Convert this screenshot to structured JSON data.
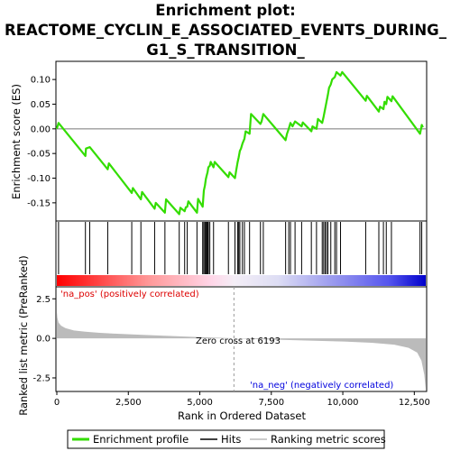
{
  "chart_data": {
    "type": "line",
    "title_lines": [
      "Enrichment plot:",
      "REACTOME_CYCLIN_E_ASSOCIATED_EVENTS_DURING_",
      "G1_S_TRANSITION_"
    ],
    "total_genes": 12900,
    "top_panel": {
      "ylabel": "Enrichment score (ES)",
      "ylim": [
        -0.185,
        0.135
      ],
      "yticks": [
        -0.15,
        -0.1,
        -0.05,
        0.0,
        0.05,
        0.1
      ],
      "ytick_labels": [
        "-0.15",
        "-0.10",
        "-0.05",
        "0.00",
        "0.05",
        "0.10"
      ],
      "series_name": "Enrichment profile",
      "color": "#33dd00",
      "points": [
        [
          0,
          0.0
        ],
        [
          60,
          0.012
        ],
        [
          1000,
          -0.055
        ],
        [
          1020,
          -0.04
        ],
        [
          1150,
          -0.037
        ],
        [
          1780,
          -0.082
        ],
        [
          1820,
          -0.07
        ],
        [
          2620,
          -0.13
        ],
        [
          2660,
          -0.12
        ],
        [
          2940,
          -0.143
        ],
        [
          2980,
          -0.128
        ],
        [
          3420,
          -0.162
        ],
        [
          3460,
          -0.15
        ],
        [
          3780,
          -0.17
        ],
        [
          3820,
          -0.143
        ],
        [
          4280,
          -0.173
        ],
        [
          4320,
          -0.16
        ],
        [
          4470,
          -0.167
        ],
        [
          4510,
          -0.159
        ],
        [
          4560,
          -0.158
        ],
        [
          4600,
          -0.147
        ],
        [
          4900,
          -0.17
        ],
        [
          4940,
          -0.142
        ],
        [
          5100,
          -0.158
        ],
        [
          5140,
          -0.125
        ],
        [
          5180,
          -0.115
        ],
        [
          5210,
          -0.102
        ],
        [
          5240,
          -0.095
        ],
        [
          5270,
          -0.088
        ],
        [
          5300,
          -0.078
        ],
        [
          5350,
          -0.075
        ],
        [
          5380,
          -0.067
        ],
        [
          5480,
          -0.078
        ],
        [
          5520,
          -0.067
        ],
        [
          6000,
          -0.098
        ],
        [
          6040,
          -0.088
        ],
        [
          6230,
          -0.1
        ],
        [
          6270,
          -0.085
        ],
        [
          6320,
          -0.068
        ],
        [
          6360,
          -0.058
        ],
        [
          6400,
          -0.045
        ],
        [
          6440,
          -0.04
        ],
        [
          6490,
          -0.03
        ],
        [
          6560,
          -0.02
        ],
        [
          6600,
          -0.005
        ],
        [
          6740,
          -0.01
        ],
        [
          6790,
          0.03
        ],
        [
          7120,
          0.01
        ],
        [
          7160,
          0.015
        ],
        [
          7220,
          0.03
        ],
        [
          8000,
          -0.023
        ],
        [
          8050,
          -0.01
        ],
        [
          8110,
          0.0
        ],
        [
          8170,
          0.012
        ],
        [
          8240,
          0.005
        ],
        [
          8330,
          0.015
        ],
        [
          8560,
          0.005
        ],
        [
          8600,
          0.013
        ],
        [
          8900,
          -0.005
        ],
        [
          8940,
          0.005
        ],
        [
          9080,
          0.0
        ],
        [
          9130,
          0.02
        ],
        [
          9280,
          0.012
        ],
        [
          9330,
          0.025
        ],
        [
          9380,
          0.04
        ],
        [
          9430,
          0.055
        ],
        [
          9480,
          0.07
        ],
        [
          9520,
          0.083
        ],
        [
          9580,
          0.09
        ],
        [
          9630,
          0.1
        ],
        [
          9720,
          0.105
        ],
        [
          9780,
          0.115
        ],
        [
          9920,
          0.108
        ],
        [
          9980,
          0.115
        ],
        [
          10800,
          0.057
        ],
        [
          10840,
          0.067
        ],
        [
          11260,
          0.035
        ],
        [
          11300,
          0.045
        ],
        [
          11420,
          0.04
        ],
        [
          11460,
          0.055
        ],
        [
          11520,
          0.05
        ],
        [
          11560,
          0.065
        ],
        [
          11700,
          0.056
        ],
        [
          11740,
          0.066
        ],
        [
          12700,
          -0.01
        ],
        [
          12760,
          0.008
        ],
        [
          12800,
          0.003
        ]
      ]
    },
    "hits_panel": {
      "hit_positions": [
        60,
        1000,
        1150,
        1780,
        2620,
        2940,
        3420,
        3780,
        4280,
        4470,
        4560,
        4900,
        5100,
        5140,
        5180,
        5210,
        5240,
        5270,
        5300,
        5350,
        5480,
        6000,
        6230,
        6320,
        6360,
        6400,
        6490,
        6560,
        6740,
        7120,
        7220,
        8000,
        8110,
        8170,
        8330,
        8560,
        8900,
        9080,
        9280,
        9330,
        9380,
        9430,
        9480,
        9580,
        9720,
        9780,
        9920,
        10800,
        11260,
        11420,
        11520,
        11700,
        12700,
        12760
      ]
    },
    "bottom_panel": {
      "ylabel": "Ranked list metric (PreRanked)",
      "xlabel": "Rank in Ordered Dataset",
      "ylim": [
        -3.3,
        3.2
      ],
      "yticks": [
        -2.5,
        0.0,
        2.5
      ],
      "ytick_labels": [
        "-2.5",
        "0.0",
        "2.5"
      ],
      "xlim": [
        0,
        12900
      ],
      "xticks": [
        0,
        2500,
        5000,
        7500,
        10000,
        12500
      ],
      "xtick_labels": [
        "0",
        "2,500",
        "5,000",
        "7,500",
        "10,000",
        "12,500"
      ],
      "metric_profile": [
        [
          0,
          1.7
        ],
        [
          20,
          1.3
        ],
        [
          60,
          1.0
        ],
        [
          150,
          0.8
        ],
        [
          300,
          0.65
        ],
        [
          600,
          0.5
        ],
        [
          1000,
          0.42
        ],
        [
          1500,
          0.35
        ],
        [
          2000,
          0.3
        ],
        [
          3000,
          0.22
        ],
        [
          4000,
          0.15
        ],
        [
          5000,
          0.08
        ],
        [
          6193,
          0.0
        ],
        [
          7000,
          -0.05
        ],
        [
          8000,
          -0.1
        ],
        [
          9000,
          -0.15
        ],
        [
          10000,
          -0.2
        ],
        [
          11000,
          -0.28
        ],
        [
          11800,
          -0.4
        ],
        [
          12300,
          -0.6
        ],
        [
          12600,
          -0.9
        ],
        [
          12750,
          -1.4
        ],
        [
          12850,
          -2.3
        ],
        [
          12900,
          -3.2
        ]
      ],
      "zero_cross_rank": 6193,
      "zero_cross_text": "Zero cross at 6193",
      "pos_label": "'na_pos' (positively correlated)",
      "neg_label": "'na_neg' (negatively correlated)",
      "pos_color": "#dd0000",
      "neg_color": "#0000dd"
    },
    "legend": [
      {
        "label": "Enrichment profile",
        "color": "#33dd00"
      },
      {
        "label": "Hits",
        "color": "#000000"
      },
      {
        "label": "Ranking metric scores",
        "color": "#bbbbbb"
      }
    ]
  }
}
